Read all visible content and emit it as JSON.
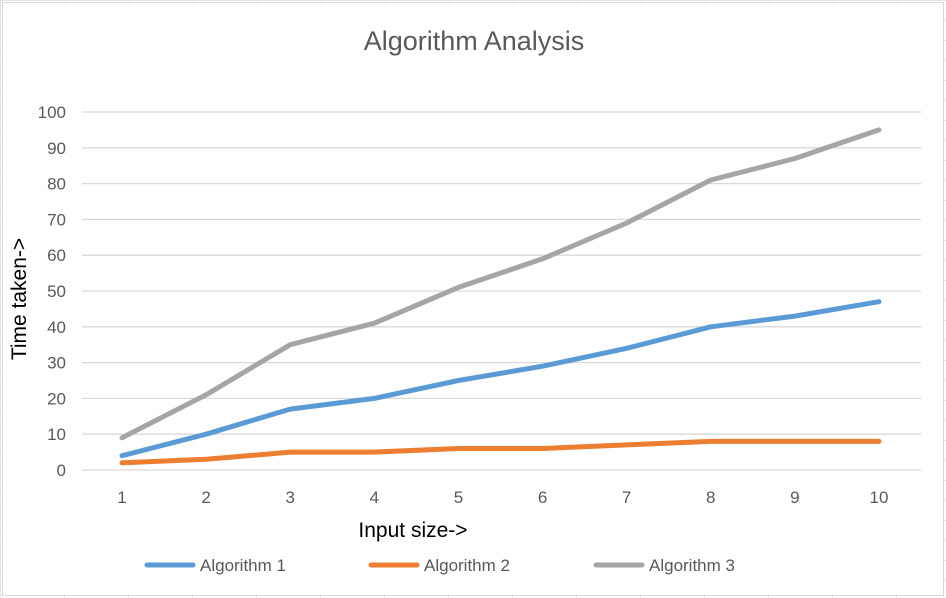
{
  "chart_data": {
    "type": "line",
    "title": "Algorithm Analysis",
    "xlabel": "Input size->",
    "ylabel": "Time taken->",
    "categories": [
      "1",
      "2",
      "3",
      "4",
      "5",
      "6",
      "7",
      "8",
      "9",
      "10"
    ],
    "ylim": [
      0,
      100
    ],
    "yticks": [
      0,
      10,
      20,
      30,
      40,
      50,
      60,
      70,
      80,
      90,
      100
    ],
    "grid": true,
    "legend_position": "bottom",
    "series": [
      {
        "name": "Algorithm 1",
        "color": "#5B9BD5",
        "values": [
          4,
          10,
          17,
          20,
          25,
          29,
          34,
          40,
          43,
          47
        ]
      },
      {
        "name": "Algorithm 2",
        "color": "#ED7D31",
        "values": [
          2,
          3,
          5,
          5,
          6,
          6,
          7,
          8,
          8,
          8
        ]
      },
      {
        "name": "Algorithm 3",
        "color": "#A5A5A5",
        "values": [
          9,
          21,
          35,
          41,
          51,
          59,
          69,
          81,
          87,
          95
        ]
      }
    ]
  }
}
